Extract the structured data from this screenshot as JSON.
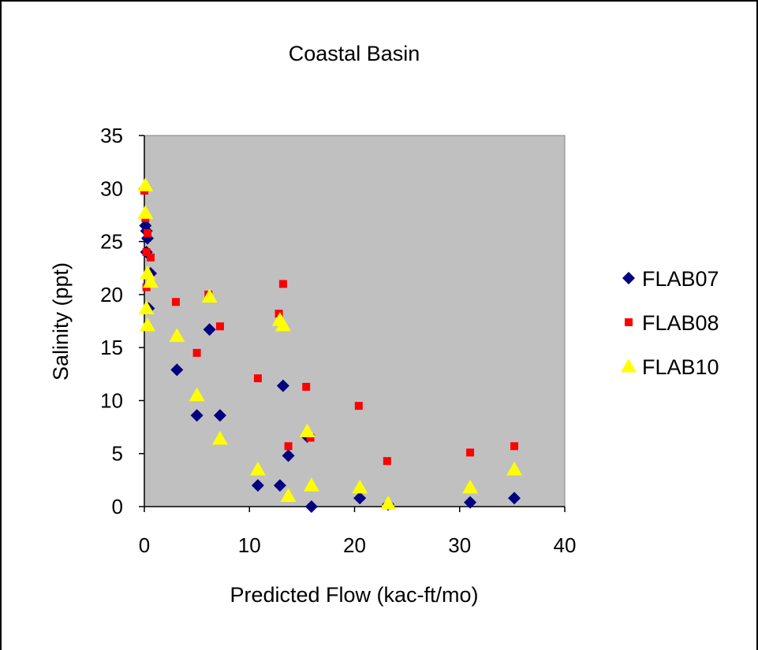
{
  "chart_data": {
    "type": "scatter",
    "title": "Coastal Basin",
    "xlabel": "Predicted Flow (kac-ft/mo)",
    "ylabel": "Salinity (ppt)",
    "xlim": [
      0,
      40
    ],
    "ylim": [
      0,
      35
    ],
    "x_ticks": [
      "0",
      "10",
      "20",
      "30",
      "40"
    ],
    "y_ticks": [
      "0",
      "5",
      "10",
      "15",
      "20",
      "25",
      "30",
      "35"
    ],
    "plot_background": "#c0c0c0",
    "grid": false,
    "legend_position": "right",
    "series": [
      {
        "name": "FLAB07",
        "marker": "diamond",
        "color": "#000080",
        "points": [
          [
            0.1,
            26.5
          ],
          [
            0.2,
            26.0
          ],
          [
            0.3,
            25.3
          ],
          [
            0.2,
            24.0
          ],
          [
            0.6,
            22.0
          ],
          [
            0.4,
            18.7
          ],
          [
            3.1,
            12.9
          ],
          [
            5.0,
            8.6
          ],
          [
            6.2,
            16.7
          ],
          [
            7.2,
            8.6
          ],
          [
            10.8,
            2.0
          ],
          [
            12.9,
            2.0
          ],
          [
            13.2,
            11.4
          ],
          [
            13.7,
            4.8
          ],
          [
            15.5,
            6.6
          ],
          [
            15.9,
            0.0
          ],
          [
            20.5,
            0.8
          ],
          [
            23.2,
            0.2
          ],
          [
            31.0,
            0.4
          ],
          [
            35.2,
            0.8
          ]
        ]
      },
      {
        "name": "FLAB08",
        "marker": "square",
        "color": "#ff0000",
        "points": [
          [
            0.0,
            29.8
          ],
          [
            0.1,
            27.2
          ],
          [
            0.3,
            25.8
          ],
          [
            0.2,
            24.0
          ],
          [
            0.6,
            23.5
          ],
          [
            0.2,
            20.7
          ],
          [
            3.0,
            19.3
          ],
          [
            5.0,
            14.5
          ],
          [
            6.1,
            20.0
          ],
          [
            7.2,
            17.0
          ],
          [
            10.8,
            12.1
          ],
          [
            12.8,
            18.2
          ],
          [
            13.2,
            21.0
          ],
          [
            13.7,
            5.7
          ],
          [
            15.4,
            11.3
          ],
          [
            15.8,
            6.5
          ],
          [
            20.4,
            9.5
          ],
          [
            23.1,
            4.3
          ],
          [
            31.0,
            5.1
          ],
          [
            35.2,
            5.7
          ]
        ]
      },
      {
        "name": "FLAB10",
        "marker": "triangle",
        "color": "#ffff00",
        "points": [
          [
            0.1,
            30.3
          ],
          [
            0.1,
            27.7
          ],
          [
            0.3,
            22.0
          ],
          [
            0.6,
            21.2
          ],
          [
            0.2,
            18.7
          ],
          [
            0.3,
            17.1
          ],
          [
            3.1,
            16.1
          ],
          [
            5.0,
            10.5
          ],
          [
            6.2,
            19.8
          ],
          [
            7.2,
            6.4
          ],
          [
            10.8,
            3.5
          ],
          [
            12.9,
            17.6
          ],
          [
            13.2,
            17.1
          ],
          [
            13.7,
            1.0
          ],
          [
            15.5,
            7.1
          ],
          [
            15.9,
            2.0
          ],
          [
            20.5,
            1.8
          ],
          [
            23.2,
            0.3
          ],
          [
            31.0,
            1.8
          ],
          [
            35.2,
            3.5
          ]
        ]
      }
    ]
  }
}
